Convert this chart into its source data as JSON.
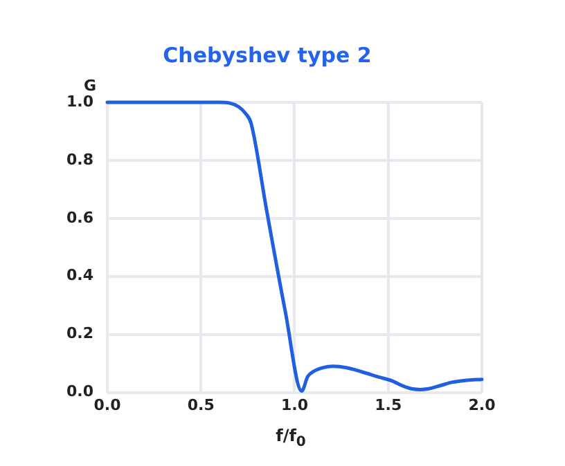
{
  "chart_data": {
    "type": "line",
    "title": "Chebyshev type 2",
    "xlabel": "f/f$_{0}$",
    "ylabel": "G",
    "xlim": [
      0,
      2
    ],
    "xticks": [
      {
        "value": 0,
        "label": "0.0"
      },
      0.5,
      {
        "value": 1,
        "label": "1.0"
      },
      1.5,
      {
        "value": 2,
        "label": "2.0"
      }
    ],
    "ylim": [
      0,
      1
    ],
    "yticks": [
      {
        "value": 0,
        "label": "0.0"
      },
      0.2,
      0.4,
      0.6,
      0.8,
      {
        "value": 1,
        "label": "1.0"
      }
    ],
    "grid": true,
    "legend": false,
    "marker": "none",
    "line_style": "solid",
    "series": [
      {
        "color": "#1f5fe0",
        "x": [
          0,
          0.3,
          0.6,
          0.65,
          0.7,
          0.74,
          0.768,
          0.85,
          0.95,
          1.038,
          1.07,
          1.1,
          1.15,
          1.205,
          1.28,
          1.364,
          1.45,
          1.52,
          1.58,
          1.63,
          1.67,
          1.71,
          1.78,
          1.84,
          1.92,
          2.0
        ],
        "values": [
          1,
          1,
          1,
          0.998,
          0.985,
          0.96,
          0.927,
          0.63,
          0.28,
          0.005,
          0.055,
          0.072,
          0.085,
          0.09,
          0.085,
          0.07,
          0.053,
          0.04,
          0.022,
          0.012,
          0.01,
          0.012,
          0.024,
          0.035,
          0.042,
          0.045
        ]
      }
    ]
  }
}
